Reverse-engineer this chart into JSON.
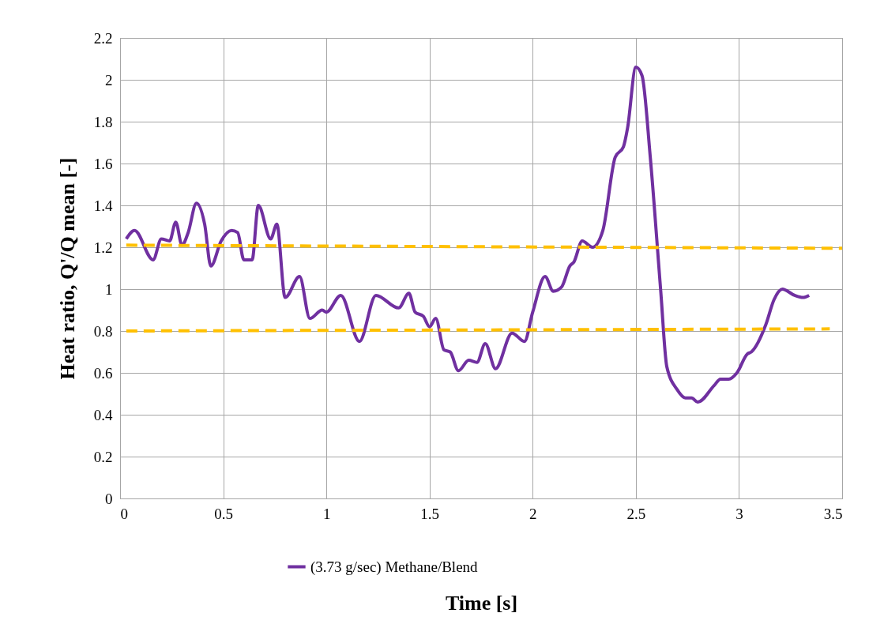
{
  "chart_data": {
    "type": "line",
    "xlabel": "Time [s]",
    "ylabel": "Heat ratio, Q'/Q mean [-]",
    "xlim": [
      0,
      3.5
    ],
    "xticks": [
      0,
      0.5,
      1,
      1.5,
      2,
      2.5,
      3,
      3.5
    ],
    "ylim": [
      0,
      2.2
    ],
    "yticks": [
      0,
      0.2,
      0.4,
      0.6,
      0.8,
      1,
      1.2,
      1.4,
      1.6,
      1.8,
      2,
      2.2
    ],
    "grid": true,
    "legend": "bottom",
    "marker": "none",
    "series": [
      {
        "name": "(3.73 g/sec) Methane/Blend",
        "color": "#7030a0",
        "line_style": "solid",
        "x": [
          0.03,
          0.07,
          0.16,
          0.2,
          0.24,
          0.27,
          0.3,
          0.33,
          0.37,
          0.41,
          0.44,
          0.49,
          0.54,
          0.57,
          0.6,
          0.64,
          0.67,
          0.73,
          0.76,
          0.8,
          0.87,
          0.92,
          0.98,
          1.0,
          1.07,
          1.16,
          1.24,
          1.35,
          1.4,
          1.43,
          1.47,
          1.5,
          1.53,
          1.57,
          1.6,
          1.64,
          1.69,
          1.73,
          1.77,
          1.82,
          1.9,
          1.96,
          2.0,
          2.06,
          2.1,
          2.14,
          2.18,
          2.2,
          2.24,
          2.29,
          2.34,
          2.4,
          2.44,
          2.46,
          2.5,
          2.53,
          2.57,
          2.62,
          2.65,
          2.7,
          2.74,
          2.77,
          2.8,
          2.88,
          2.91,
          2.95,
          2.99,
          3.04,
          3.06,
          3.13,
          3.17,
          3.21,
          3.27,
          3.31,
          3.34
        ],
        "values": [
          1.24,
          1.28,
          1.14,
          1.24,
          1.23,
          1.32,
          1.21,
          1.27,
          1.41,
          1.31,
          1.11,
          1.23,
          1.28,
          1.27,
          1.14,
          1.14,
          1.4,
          1.24,
          1.31,
          0.96,
          1.06,
          0.86,
          0.9,
          0.89,
          0.97,
          0.75,
          0.97,
          0.91,
          0.98,
          0.89,
          0.87,
          0.82,
          0.86,
          0.71,
          0.7,
          0.61,
          0.66,
          0.65,
          0.74,
          0.62,
          0.79,
          0.75,
          0.89,
          1.06,
          0.99,
          1.01,
          1.11,
          1.13,
          1.23,
          1.2,
          1.28,
          1.63,
          1.68,
          1.77,
          2.06,
          2.02,
          1.63,
          1.0,
          0.63,
          0.52,
          0.48,
          0.48,
          0.46,
          0.54,
          0.57,
          0.57,
          0.6,
          0.69,
          0.7,
          0.83,
          0.95,
          1.0,
          0.97,
          0.96,
          0.97
        ]
      },
      {
        "color": "#ffc000",
        "line_style": "dashed",
        "x": [
          0.03,
          3.5
        ],
        "values": [
          1.21,
          1.195
        ]
      },
      {
        "color": "#ffc000",
        "line_style": "dashed",
        "x": [
          0.03,
          3.44
        ],
        "values": [
          0.8,
          0.81
        ]
      }
    ]
  }
}
